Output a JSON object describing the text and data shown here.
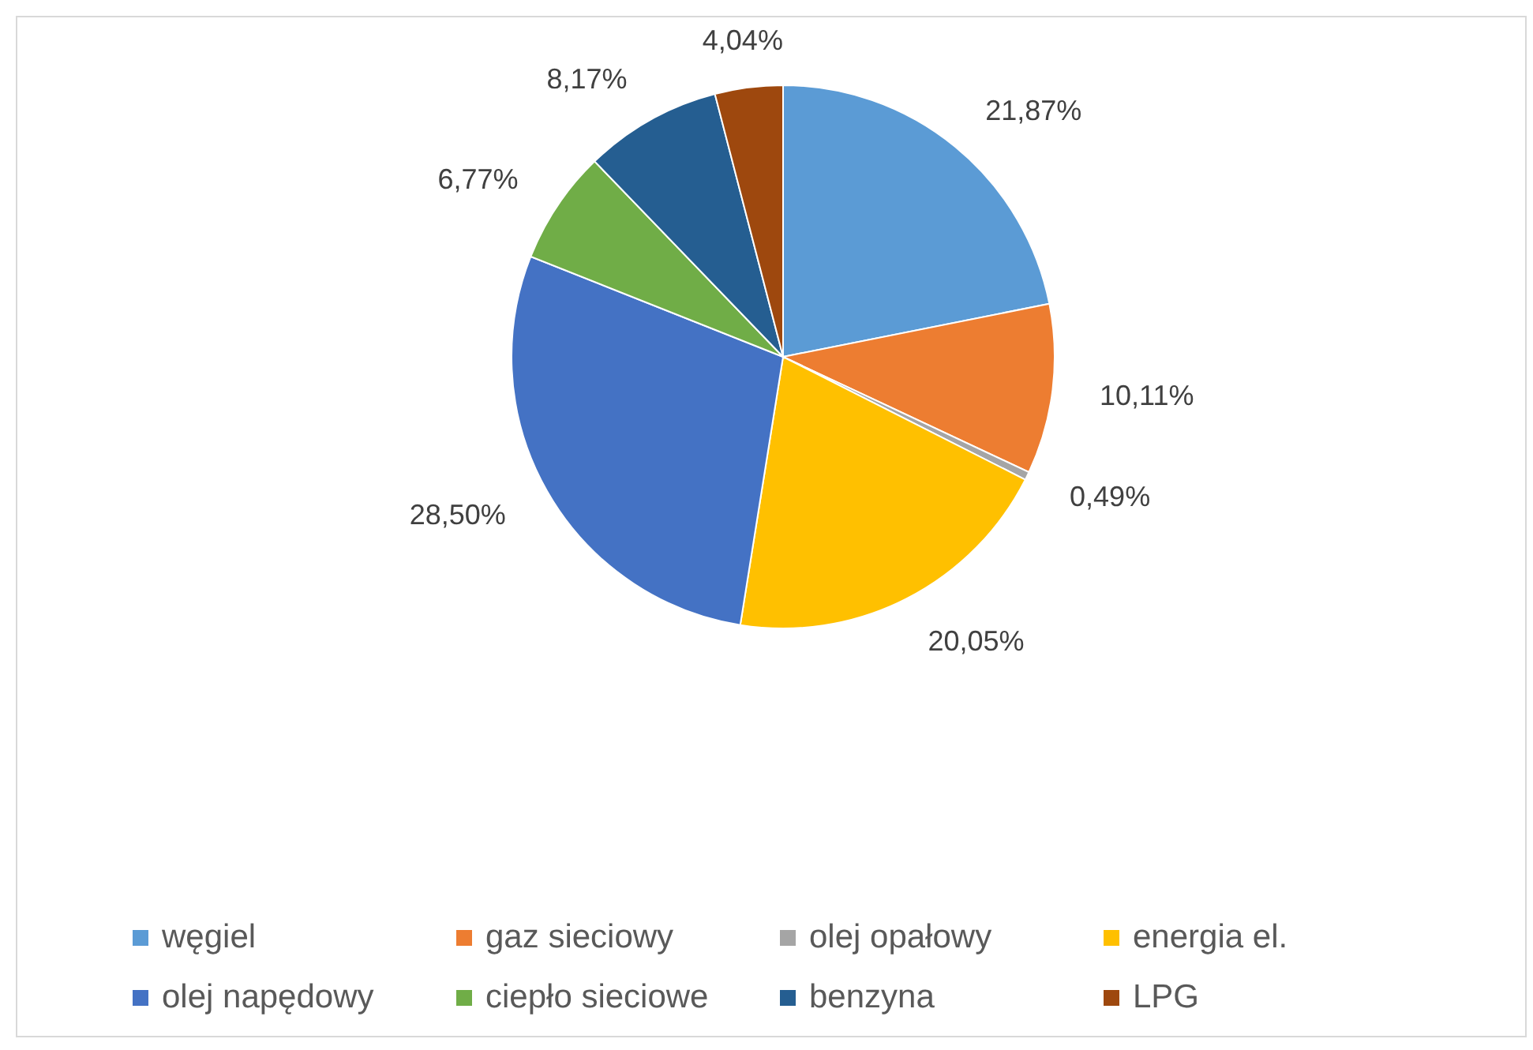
{
  "chart_data": {
    "type": "pie",
    "categories": [
      "węgiel",
      "gaz sieciowy",
      "olej opałowy",
      "energia el.",
      "olej napędowy",
      "ciepło sieciowe",
      "benzyna",
      "LPG"
    ],
    "values": [
      21.87,
      10.11,
      0.49,
      20.05,
      28.5,
      6.77,
      8.17,
      4.04
    ],
    "colors": [
      "#5b9bd5",
      "#ed7d31",
      "#a5a5a5",
      "#ffc000",
      "#4472c4",
      "#70ad47",
      "#255e91",
      "#9e480e"
    ],
    "value_labels": [
      "21,87%",
      "10,11%",
      "0,49%",
      "20,05%",
      "28,50%",
      "6,77%",
      "8,17%",
      "4,04%"
    ],
    "legend": "bottom"
  }
}
